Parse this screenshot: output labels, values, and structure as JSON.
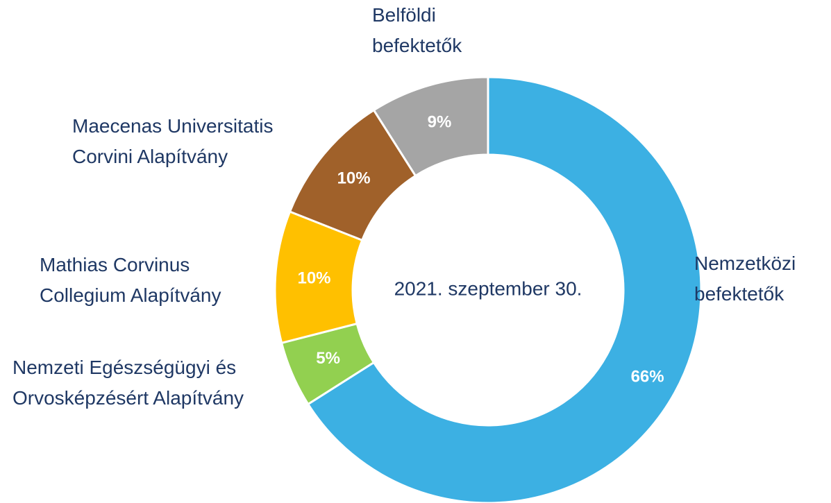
{
  "chart_data": {
    "type": "donut",
    "center_text": "2021. szeptember 30.",
    "categories": [
      "Nemzetközi\nbefektetők",
      "Nemzeti Egészségügyi és\nOrvosképzésért Alapítvány",
      "Mathias Corvinus\nCollegium Alapítvány",
      "Maecenas Universitatis\nCorvini Alapítvány",
      "Belföldi\nbefektetők"
    ],
    "values": [
      66,
      5,
      10,
      10,
      9
    ],
    "value_labels": [
      "66%",
      "5%",
      "10%",
      "10%",
      "9%"
    ],
    "colors": [
      "#3cb0e3",
      "#92d050",
      "#ffc000",
      "#a0612a",
      "#a5a5a5"
    ]
  }
}
